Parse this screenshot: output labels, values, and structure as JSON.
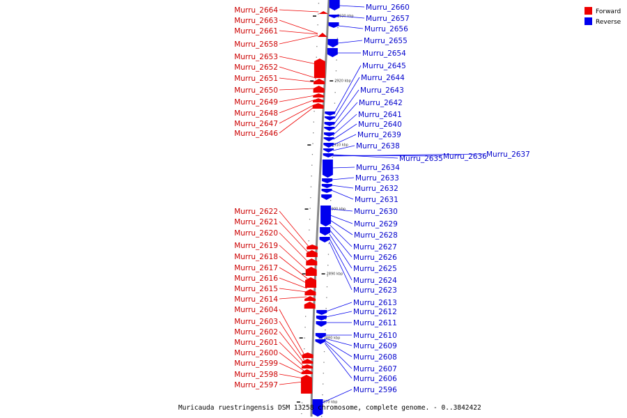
{
  "legend": {
    "forward_label": "Forward",
    "reverse_label": "Reverse",
    "forward_color": "#ee0000",
    "reverse_color": "#0000ee"
  },
  "caption": "Muricauda ruestringensis DSM 13258 chromosome, complete genome. - 0..3842422",
  "ticks": [
    "2930 kbp",
    "2920 kbp",
    "2910 kbp",
    "2900 kbp",
    "2890 kbp",
    "2880 kbp",
    "2870 kbp"
  ],
  "forward_genes": [
    "Murru_2664",
    "Murru_2663",
    "Murru_2661",
    "Murru_2658",
    "Murru_2653",
    "Murru_2652",
    "Murru_2651",
    "Murru_2650",
    "Murru_2649",
    "Murru_2648",
    "Murru_2647",
    "Murru_2646",
    "Murru_2622",
    "Murru_2621",
    "Murru_2620",
    "Murru_2619",
    "Murru_2618",
    "Murru_2617",
    "Murru_2616",
    "Murru_2615",
    "Murru_2614",
    "Murru_2604",
    "Murru_2603",
    "Murru_2602",
    "Murru_2601",
    "Murru_2600",
    "Murru_2599",
    "Murru_2598",
    "Murru_2597"
  ],
  "reverse_genes": [
    "Murru_2660",
    "Murru_2657",
    "Murru_2656",
    "Murru_2655",
    "Murru_2654",
    "Murru_2645",
    "Murru_2644",
    "Murru_2643",
    "Murru_2642",
    "Murru_2641",
    "Murru_2640",
    "Murru_2639",
    "Murru_2638",
    "Murru_2635",
    "Murru_2636",
    "Murru_2637",
    "Murru_2634",
    "Murru_2633",
    "Murru_2632",
    "Murru_2631",
    "Murru_2630",
    "Murru_2629",
    "Murru_2628",
    "Murru_2627",
    "Murru_2626",
    "Murru_2625",
    "Murru_2624",
    "Murru_2623",
    "Murru_2613",
    "Murru_2612",
    "Murru_2611",
    "Murru_2610",
    "Murru_2609",
    "Murru_2608",
    "Murru_2607",
    "Murru_2606",
    "Murru_2596"
  ]
}
